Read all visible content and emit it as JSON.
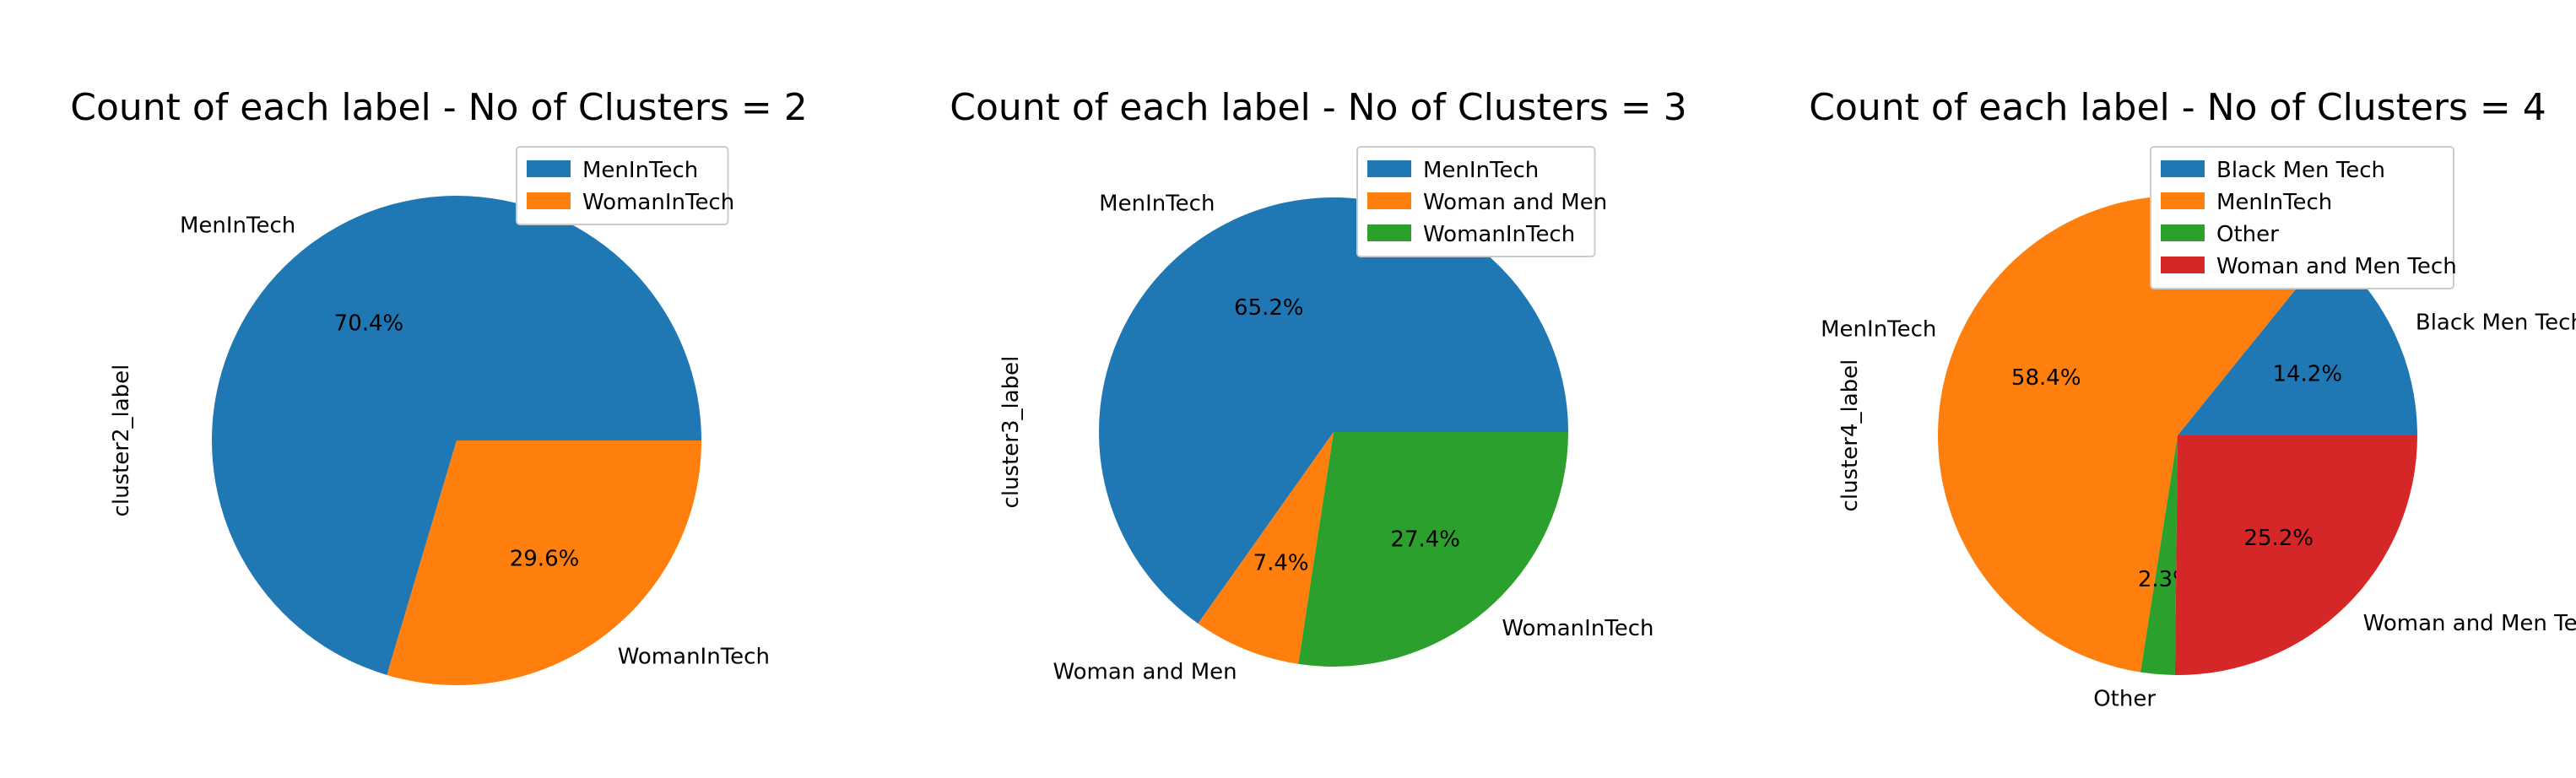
{
  "chart_data": [
    {
      "type": "pie",
      "title": "Count of each label - No of Clusters = 2",
      "ylabel": "cluster2_label",
      "legend": "top-right",
      "slices": [
        {
          "label": "MenInTech",
          "value": 70.4,
          "pct_text": "70.4%",
          "color": "#1f77b4"
        },
        {
          "label": "WomanInTech",
          "value": 29.6,
          "pct_text": "29.6%",
          "color": "#ff7f0e"
        }
      ]
    },
    {
      "type": "pie",
      "title": "Count of each label - No of Clusters = 3",
      "ylabel": "cluster3_label",
      "legend": "top-right",
      "slices": [
        {
          "label": "MenInTech",
          "value": 65.2,
          "pct_text": "65.2%",
          "color": "#1f77b4"
        },
        {
          "label": "Woman and Men",
          "value": 7.4,
          "pct_text": "7.4%",
          "color": "#ff7f0e"
        },
        {
          "label": "WomanInTech",
          "value": 27.4,
          "pct_text": "27.4%",
          "color": "#2ca02c"
        }
      ]
    },
    {
      "type": "pie",
      "title": "Count of each label - No of Clusters = 4",
      "ylabel": "cluster4_label",
      "legend": "top-right",
      "slices": [
        {
          "label": "Black Men Tech",
          "value": 14.2,
          "pct_text": "14.2%",
          "color": "#1f77b4"
        },
        {
          "label": "MenInTech",
          "value": 58.4,
          "pct_text": "58.4%",
          "color": "#ff7f0e"
        },
        {
          "label": "Other",
          "value": 2.3,
          "pct_text": "2.3%",
          "color": "#2ca02c"
        },
        {
          "label": "Woman and Men Tech",
          "value": 25.2,
          "pct_text": "25.2%",
          "color": "#d62728"
        }
      ]
    }
  ]
}
